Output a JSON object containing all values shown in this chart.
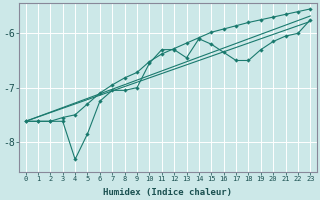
{
  "xlabel": "Humidex (Indice chaleur)",
  "background_color": "#cce8e8",
  "grid_color": "#aacccc",
  "line_color": "#1a7a6e",
  "xlim": [
    -0.5,
    23.5
  ],
  "ylim": [
    -8.55,
    -5.45
  ],
  "yticks": [
    -8,
    -7,
    -6
  ],
  "xticks": [
    0,
    1,
    2,
    3,
    4,
    5,
    6,
    7,
    8,
    9,
    10,
    11,
    12,
    13,
    14,
    15,
    16,
    17,
    18,
    19,
    20,
    21,
    22,
    23
  ],
  "series0_x": [
    0,
    1,
    2,
    3,
    4,
    5,
    6,
    7,
    8,
    9,
    10,
    11,
    12,
    13,
    14,
    15,
    16,
    17,
    18,
    19,
    20,
    21,
    22,
    23
  ],
  "series0_y": [
    -7.62,
    -7.62,
    -7.62,
    -7.62,
    -8.32,
    -7.85,
    -7.25,
    -7.05,
    -7.05,
    -7.0,
    -6.55,
    -6.3,
    -6.3,
    -6.45,
    -6.1,
    -6.2,
    -6.35,
    -6.5,
    -6.5,
    -6.3,
    -6.15,
    -6.05,
    -6.0,
    -5.75
  ],
  "series1_x": [
    0,
    1,
    2,
    3,
    4,
    5,
    6,
    7,
    8,
    9,
    10,
    11,
    12,
    13,
    14,
    15,
    16,
    17,
    18,
    19,
    20,
    21,
    22,
    23
  ],
  "series1_y": [
    -7.62,
    -7.62,
    -7.62,
    -7.55,
    -7.5,
    -7.3,
    -7.1,
    -6.95,
    -6.82,
    -6.72,
    -6.52,
    -6.38,
    -6.28,
    -6.18,
    -6.08,
    -5.98,
    -5.92,
    -5.86,
    -5.8,
    -5.75,
    -5.7,
    -5.65,
    -5.6,
    -5.55
  ],
  "series2_x": [
    0,
    23
  ],
  "series2_y": [
    -7.62,
    -5.68
  ],
  "series3_x": [
    0,
    23
  ],
  "series3_y": [
    -7.62,
    -5.78
  ]
}
